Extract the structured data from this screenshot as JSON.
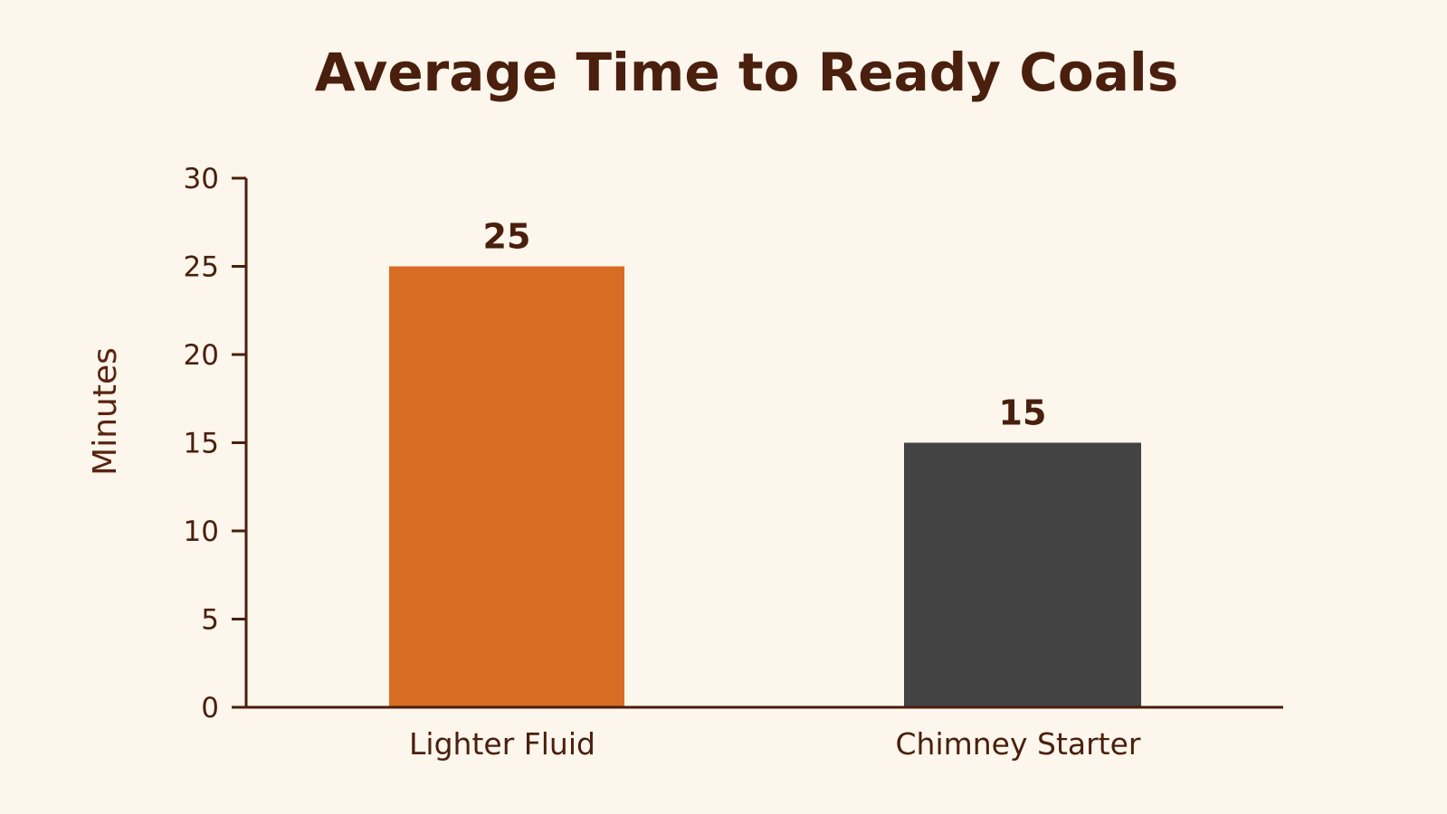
{
  "chart_data": {
    "type": "bar",
    "title": "Average Time to Ready Coals",
    "xlabel": "",
    "ylabel": "Minutes",
    "categories": [
      "Lighter Fluid",
      "Chimney Starter"
    ],
    "values": [
      25,
      15
    ],
    "data_labels": [
      "25",
      "15"
    ],
    "colors": [
      "#d86c22",
      "#434343"
    ],
    "ylim": [
      0,
      30
    ],
    "yticks": [
      0,
      5,
      10,
      15,
      20,
      25,
      30
    ],
    "grid": false,
    "legend": "none"
  },
  "colors": {
    "background": "#fcf6ec",
    "text": "#4a1f0d",
    "axis": "#4a1f0d"
  }
}
